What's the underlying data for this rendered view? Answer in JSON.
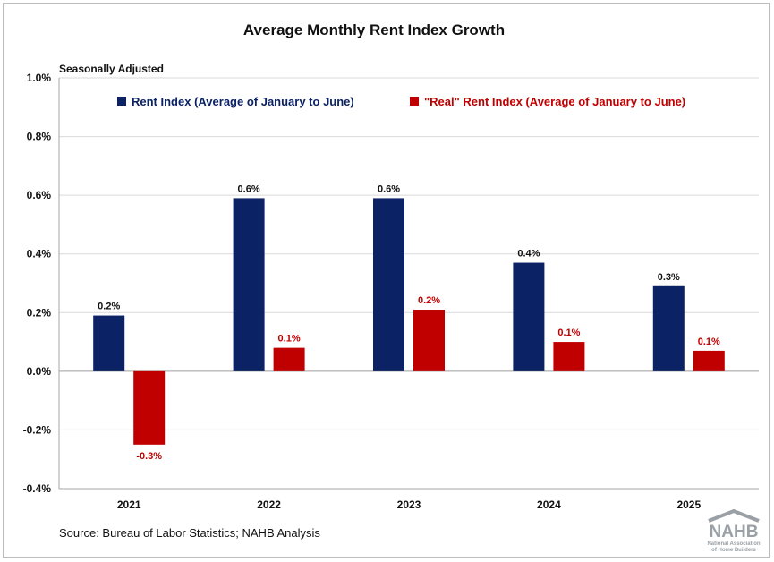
{
  "chart_data": {
    "type": "bar",
    "title": "Average Monthly Rent Index Growth",
    "subtitle": "Seasonally Adjusted",
    "categories": [
      "2021",
      "2022",
      "2023",
      "2024",
      "2025"
    ],
    "series": [
      {
        "name": "Rent Index (Average of January to June)",
        "color": "#0b2265",
        "values": [
          0.19,
          0.59,
          0.59,
          0.37,
          0.29
        ],
        "labels": [
          "0.2%",
          "0.6%",
          "0.6%",
          "0.4%",
          "0.3%"
        ]
      },
      {
        "name": "\"Real\" Rent Index (Average of January to June)",
        "color": "#c00000",
        "values": [
          -0.25,
          0.08,
          0.21,
          0.1,
          0.07
        ],
        "labels": [
          "-0.3%",
          "0.1%",
          "0.2%",
          "0.1%",
          "0.1%"
        ]
      }
    ],
    "ylim": [
      -0.4,
      1.0
    ],
    "yticks": [
      -0.4,
      -0.2,
      0.0,
      0.2,
      0.4,
      0.6,
      0.8,
      1.0
    ],
    "ytick_labels": [
      "-0.4%",
      "-0.2%",
      "0.0%",
      "0.2%",
      "0.4%",
      "0.6%",
      "0.8%",
      "1.0%"
    ],
    "grid": true,
    "legend_position": "top"
  },
  "source": "Source: Bureau of Labor Statistics; NAHB Analysis",
  "logo": {
    "name": "NAHB",
    "line1": "National Association",
    "line2": "of Home Builders",
    "color": "#9aa0a6"
  }
}
